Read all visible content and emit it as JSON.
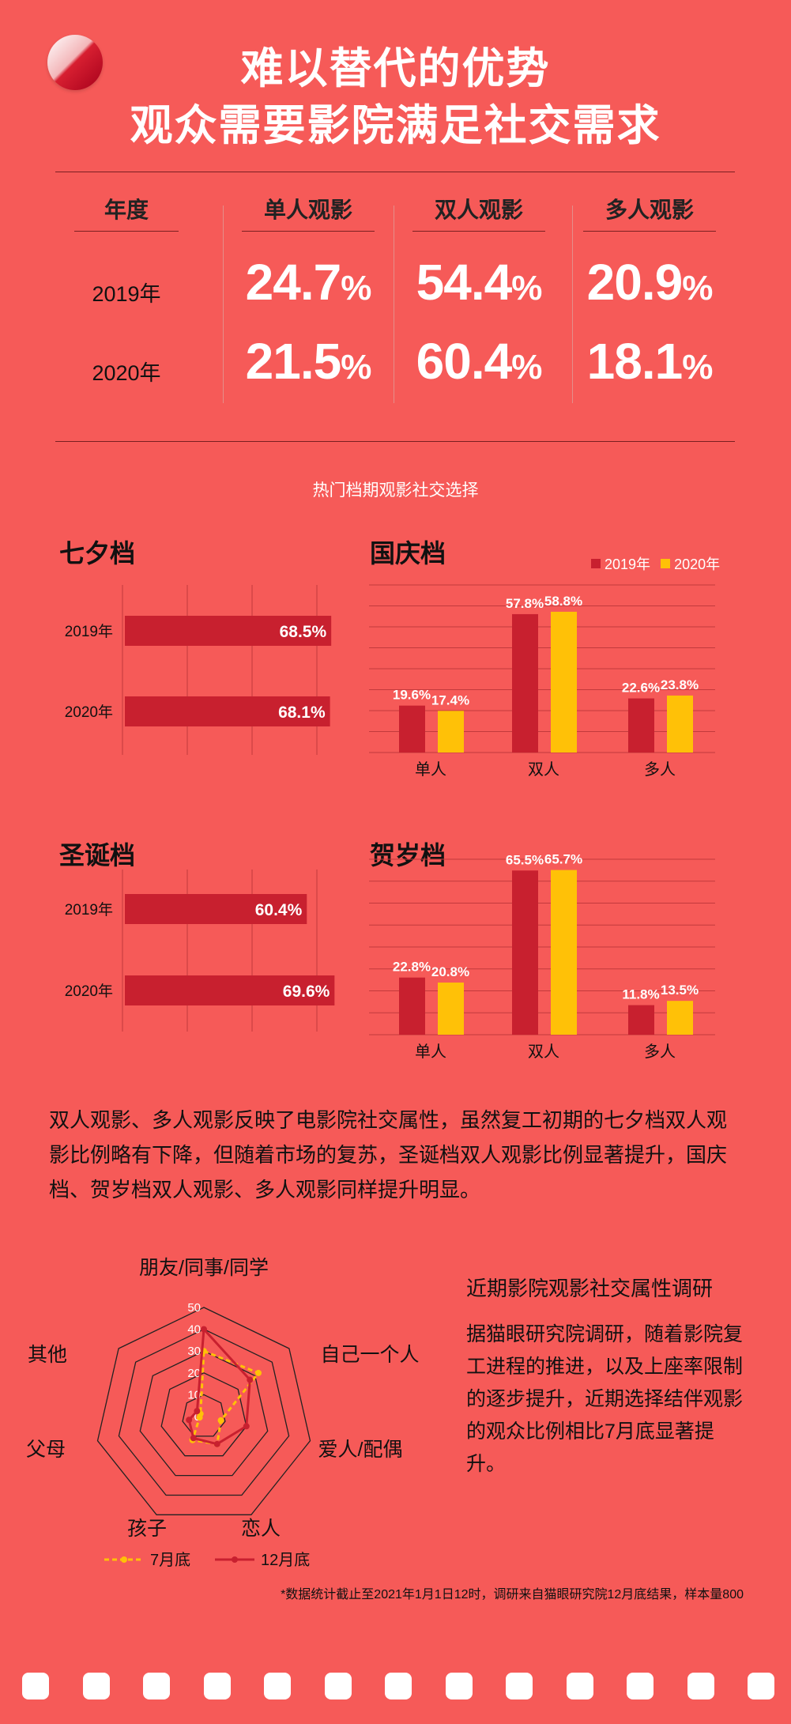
{
  "header": {
    "title_line1": "难以替代的优势",
    "title_line2": "观众需要影院满足社交需求"
  },
  "stats": {
    "headers": [
      "年度",
      "单人观影",
      "双人观影",
      "多人观影"
    ],
    "rows": [
      {
        "year": "2019年",
        "single": "24.7",
        "double": "54.4",
        "multi": "20.9"
      },
      {
        "year": "2020年",
        "single": "21.5",
        "double": "60.4",
        "multi": "18.1"
      }
    ],
    "unit": "%"
  },
  "section_label": "热门档期观影社交选择",
  "legend": {
    "y2019": "2019年",
    "y2020": "2020年"
  },
  "colors": {
    "background": "#f65a58",
    "y2019": "#c8202f",
    "y2020": "#ffc107",
    "text_dark": "#111111"
  },
  "chart_data": [
    {
      "type": "bar",
      "orientation": "horizontal",
      "title": "七夕档",
      "categories": [
        "2019年",
        "2020年"
      ],
      "values": [
        68.5,
        68.1
      ],
      "labels": [
        "68.5%",
        "68.1%"
      ],
      "xlim": [
        0,
        80
      ]
    },
    {
      "type": "bar",
      "title": "国庆档",
      "categories": [
        "单人",
        "双人",
        "多人"
      ],
      "series": [
        {
          "name": "2019年",
          "values": [
            19.6,
            57.8,
            22.6
          ],
          "labels": [
            "19.6%",
            "57.8%",
            "22.6%"
          ]
        },
        {
          "name": "2020年",
          "values": [
            17.4,
            58.8,
            23.8
          ],
          "labels": [
            "17.4%",
            "58.8%",
            "23.8%"
          ]
        }
      ],
      "ylim": [
        0,
        70
      ],
      "legend": "top-right"
    },
    {
      "type": "bar",
      "orientation": "horizontal",
      "title": "圣诞档",
      "categories": [
        "2019年",
        "2020年"
      ],
      "values": [
        60.4,
        69.6
      ],
      "labels": [
        "60.4%",
        "69.6%"
      ],
      "xlim": [
        0,
        80
      ]
    },
    {
      "type": "bar",
      "title": "贺岁档",
      "categories": [
        "单人",
        "双人",
        "多人"
      ],
      "series": [
        {
          "name": "2019年",
          "values": [
            22.8,
            65.5,
            11.8
          ],
          "labels": [
            "22.8%",
            "65.5%",
            "11.8%"
          ]
        },
        {
          "name": "2020年",
          "values": [
            20.8,
            65.7,
            13.5
          ],
          "labels": [
            "20.8%",
            "65.7%",
            "13.5%"
          ]
        }
      ],
      "ylim": [
        0,
        70
      ]
    },
    {
      "type": "radar",
      "axes": [
        "朋友/同事/同学",
        "自己一个人",
        "爱人/配偶",
        "恋人",
        "孩子",
        "父母",
        "其他"
      ],
      "ticks": [
        "0",
        "10",
        "20",
        "30",
        "40",
        "50"
      ],
      "range": [
        0,
        50
      ],
      "series": [
        {
          "name": "7月底",
          "values": [
            30,
            32,
            8,
            14,
            12,
            2,
            2
          ]
        },
        {
          "name": "12月底",
          "values": [
            40,
            27,
            20,
            14,
            11,
            7,
            4
          ]
        }
      ]
    }
  ],
  "paragraph": "双人观影、多人观影反映了电影院社交属性，虽然复工初期的七夕档双人观影比例略有下降，但随着市场的复苏，圣诞档双人观影比例显著提升，国庆档、贺岁档双人观影、多人观影同样提升明显。",
  "survey": {
    "title": "近期影院观影社交属性调研",
    "text": "据猫眼研究院调研，随着影院复工进程的推进，以及上座率限制的逐步提升，近期选择结伴观影的观众比例相比7月底显著提升。"
  },
  "footnote": "*数据统计截止至2021年1月1日12时，调研来自猫眼研究院12月底结果，样本量800"
}
